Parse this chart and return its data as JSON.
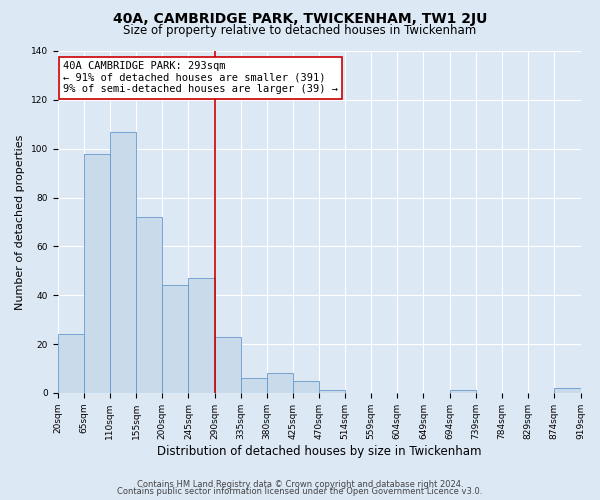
{
  "title": "40A, CAMBRIDGE PARK, TWICKENHAM, TW1 2JU",
  "subtitle": "Size of property relative to detached houses in Twickenham",
  "xlabel": "Distribution of detached houses by size in Twickenham",
  "ylabel": "Number of detached properties",
  "bin_labels": [
    "20sqm",
    "65sqm",
    "110sqm",
    "155sqm",
    "200sqm",
    "245sqm",
    "290sqm",
    "335sqm",
    "380sqm",
    "425sqm",
    "470sqm",
    "514sqm",
    "559sqm",
    "604sqm",
    "649sqm",
    "694sqm",
    "739sqm",
    "784sqm",
    "829sqm",
    "874sqm",
    "919sqm"
  ],
  "bin_edges": [
    20,
    65,
    110,
    155,
    200,
    245,
    290,
    335,
    380,
    425,
    470,
    514,
    559,
    604,
    649,
    694,
    739,
    784,
    829,
    874,
    919
  ],
  "bar_heights": [
    24,
    98,
    107,
    72,
    44,
    47,
    23,
    6,
    8,
    5,
    1,
    0,
    0,
    0,
    0,
    1,
    0,
    0,
    0,
    2
  ],
  "bar_color": "#c9daea",
  "bar_edge_color": "#6699cc",
  "reference_line_x": 290,
  "reference_line_color": "#cc0000",
  "annotation_line1": "40A CAMBRIDGE PARK: 293sqm",
  "annotation_line2": "← 91% of detached houses are smaller (391)",
  "annotation_line3": "9% of semi-detached houses are larger (39) →",
  "annotation_box_facecolor": "#ffffff",
  "annotation_box_edgecolor": "#cc0000",
  "ylim": [
    0,
    140
  ],
  "yticks": [
    0,
    20,
    40,
    60,
    80,
    100,
    120,
    140
  ],
  "footer_line1": "Contains HM Land Registry data © Crown copyright and database right 2024.",
  "footer_line2": "Contains public sector information licensed under the Open Government Licence v3.0.",
  "background_color": "#dde8f5",
  "plot_background_color": "#dde8f5",
  "title_fontsize": 10,
  "subtitle_fontsize": 8.5,
  "xlabel_fontsize": 8.5,
  "ylabel_fontsize": 8,
  "tick_fontsize": 6.5,
  "annotation_fontsize": 7.5,
  "footer_fontsize": 6
}
